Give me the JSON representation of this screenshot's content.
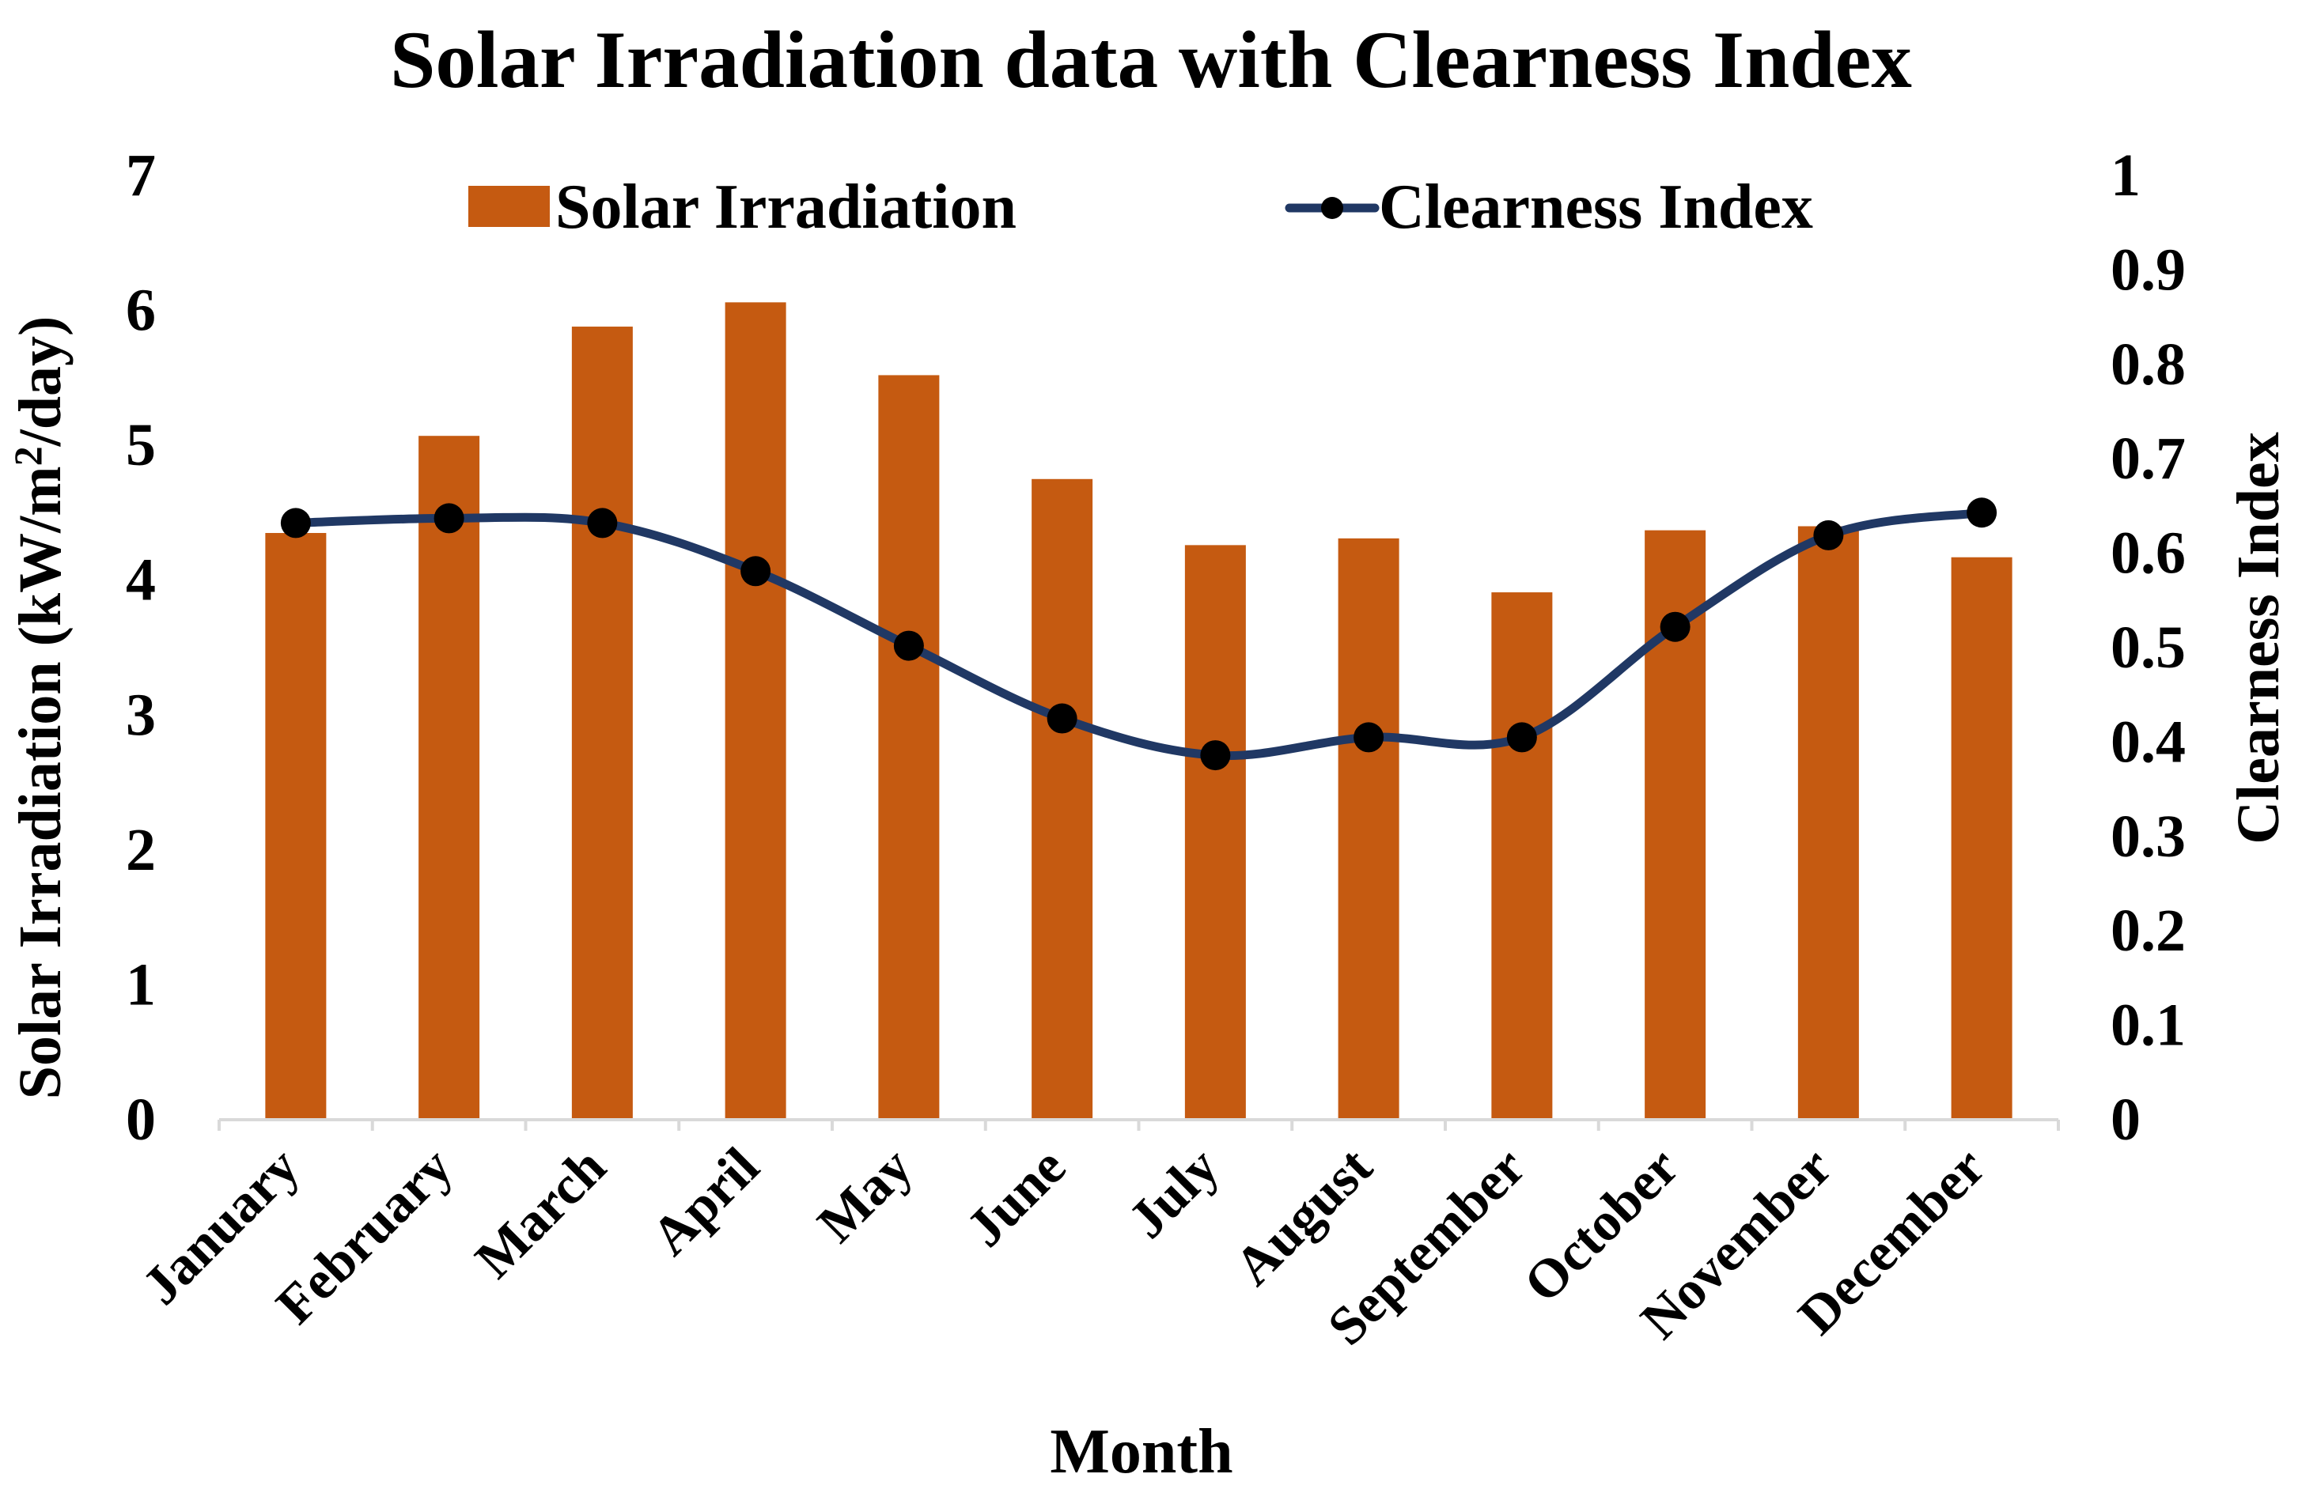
{
  "chart_data": {
    "type": "bar+line",
    "title": "Solar Irradiation data with Clearness Index",
    "xlabel": "Month",
    "ylabel_left": "Solar Irradiation (kW/m²/day)",
    "ylabel_left_parts": {
      "before": "Solar Irradiation (kW/m",
      "sup": "2",
      "after": "/day)"
    },
    "ylabel_right": "Clearness Index",
    "categories": [
      "January",
      "February",
      "March",
      "April",
      "May",
      "June",
      "July",
      "August",
      "September",
      "October",
      "November",
      "December"
    ],
    "series": [
      {
        "name": "Solar Irradiation",
        "type": "bar",
        "axis": "left",
        "color": "#c55a11",
        "values": [
          4.35,
          5.07,
          5.88,
          6.06,
          5.52,
          4.75,
          4.26,
          4.31,
          3.91,
          4.37,
          4.4,
          4.17
        ]
      },
      {
        "name": "Clearness Index",
        "type": "line",
        "axis": "right",
        "color": "#203864",
        "marker_color": "#000000",
        "values": [
          0.632,
          0.637,
          0.632,
          0.581,
          0.502,
          0.425,
          0.386,
          0.405,
          0.405,
          0.522,
          0.619,
          0.643
        ]
      }
    ],
    "y_left": {
      "min": 0,
      "max": 7,
      "ticks": [
        0,
        1,
        2,
        3,
        4,
        5,
        6,
        7
      ]
    },
    "y_right": {
      "min": 0,
      "max": 1,
      "ticks": [
        "0",
        "0.1",
        "0.2",
        "0.3",
        "0.4",
        "0.5",
        "0.6",
        "0.7",
        "0.8",
        "0.9",
        "1"
      ]
    },
    "legend_position": "top-center",
    "grid": false
  }
}
